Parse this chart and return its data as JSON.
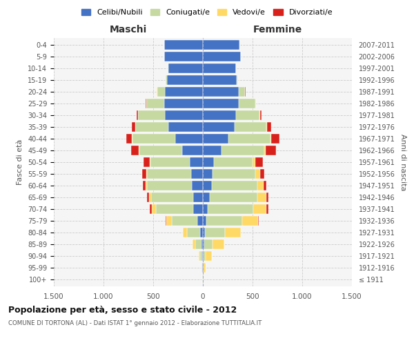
{
  "age_groups": [
    "100+",
    "95-99",
    "90-94",
    "85-89",
    "80-84",
    "75-79",
    "70-74",
    "65-69",
    "60-64",
    "55-59",
    "50-54",
    "45-49",
    "40-44",
    "35-39",
    "30-34",
    "25-29",
    "20-24",
    "15-19",
    "10-14",
    "5-9",
    "0-4"
  ],
  "birth_years": [
    "≤ 1911",
    "1912-1916",
    "1917-1921",
    "1922-1926",
    "1927-1931",
    "1932-1936",
    "1937-1941",
    "1942-1946",
    "1947-1951",
    "1952-1956",
    "1957-1961",
    "1962-1966",
    "1967-1971",
    "1972-1976",
    "1977-1981",
    "1982-1986",
    "1987-1991",
    "1992-1996",
    "1997-2001",
    "2002-2006",
    "2007-2011"
  ],
  "maschi": {
    "celibi": [
      2,
      5,
      10,
      15,
      30,
      55,
      95,
      100,
      110,
      120,
      130,
      210,
      280,
      350,
      380,
      390,
      380,
      360,
      350,
      390,
      390
    ],
    "coniugati": [
      2,
      5,
      15,
      60,
      130,
      260,
      380,
      420,
      450,
      440,
      400,
      430,
      430,
      330,
      270,
      180,
      80,
      15,
      5,
      2,
      2
    ],
    "vedovi": [
      2,
      5,
      15,
      30,
      40,
      50,
      40,
      20,
      15,
      10,
      8,
      5,
      3,
      2,
      2,
      2,
      2,
      1,
      1,
      0,
      0
    ],
    "divorziati": [
      0,
      0,
      2,
      2,
      3,
      10,
      20,
      20,
      30,
      40,
      60,
      80,
      60,
      35,
      15,
      5,
      2,
      0,
      0,
      0,
      0
    ]
  },
  "femmine": {
    "nubili": [
      2,
      5,
      10,
      15,
      20,
      35,
      50,
      70,
      90,
      100,
      110,
      190,
      260,
      320,
      330,
      360,
      360,
      340,
      330,
      380,
      370
    ],
    "coniugate": [
      2,
      5,
      20,
      80,
      200,
      360,
      460,
      480,
      460,
      430,
      390,
      430,
      420,
      320,
      240,
      170,
      65,
      10,
      3,
      2,
      2
    ],
    "vedove": [
      3,
      20,
      60,
      120,
      160,
      160,
      130,
      90,
      60,
      45,
      25,
      15,
      8,
      5,
      3,
      2,
      2,
      1,
      1,
      0,
      0
    ],
    "divorziate": [
      0,
      0,
      2,
      2,
      5,
      10,
      20,
      20,
      30,
      40,
      80,
      100,
      80,
      40,
      15,
      5,
      2,
      1,
      0,
      0,
      0
    ]
  },
  "colors": {
    "celibi": "#4472c4",
    "coniugati": "#c5d9a0",
    "vedovi": "#ffd966",
    "divorziati": "#d9211c"
  },
  "title": "Popolazione per età, sesso e stato civile - 2012",
  "subtitle": "COMUNE DI TORTONA (AL) - Dati ISTAT 1° gennaio 2012 - Elaborazione TUTTITALIA.IT",
  "ylabel_left": "Fasce di età",
  "ylabel_right": "Anni di nascita",
  "xlabel_maschi": "Maschi",
  "xlabel_femmine": "Femmine",
  "xlim": 1500,
  "xtick_labels": [
    "1.500",
    "1.000",
    "500",
    "0",
    "500",
    "1.000",
    "1.500"
  ],
  "legend_labels": [
    "Celibi/Nubili",
    "Coniugati/e",
    "Vedovi/e",
    "Divorziati/e"
  ]
}
